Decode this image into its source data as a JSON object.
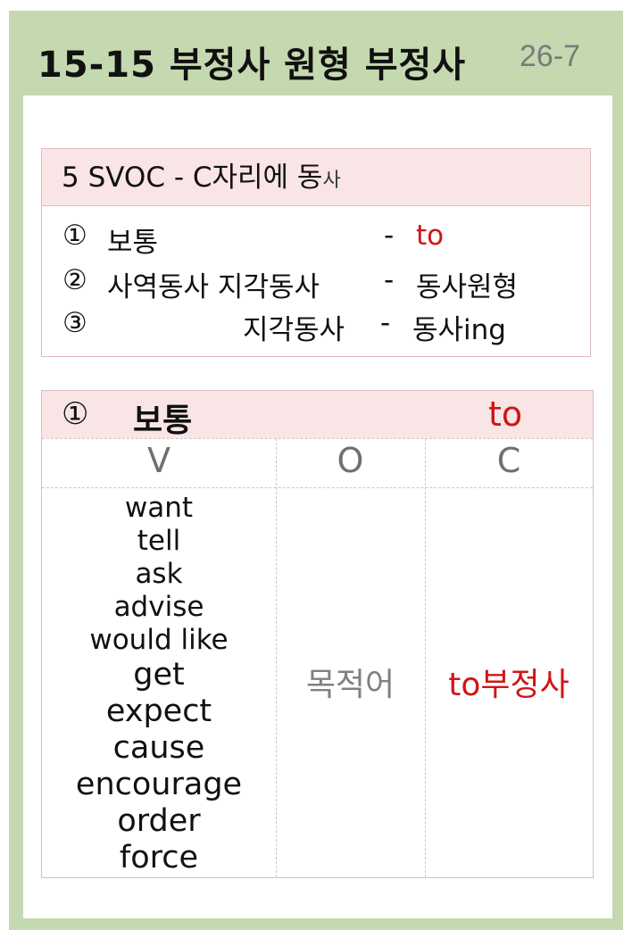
{
  "header": {
    "title": "15-15 부정사 원형 부정사",
    "page_number": "26-7"
  },
  "summary": {
    "heading_main": "5 SVOC - C자리에 동",
    "heading_small": "사",
    "rows": [
      {
        "num": "①",
        "label": "보통",
        "dash": "-",
        "result": "to"
      },
      {
        "num": "②",
        "label": "사역동사  지각동사",
        "dash": "-",
        "result": "동사원형"
      },
      {
        "num": "③",
        "label": "지각동사",
        "dash": "-",
        "result": "동사ing"
      }
    ]
  },
  "table": {
    "heading_num": "①",
    "heading_label": "보통",
    "heading_to": "to",
    "columns": [
      "V",
      "O",
      "C"
    ],
    "verbs": [
      "want",
      "tell",
      "ask",
      "advise",
      "would  like",
      "get",
      "expect",
      "cause",
      "encourage",
      "order",
      "force"
    ],
    "object": "목적어",
    "complement": "to부정사"
  }
}
